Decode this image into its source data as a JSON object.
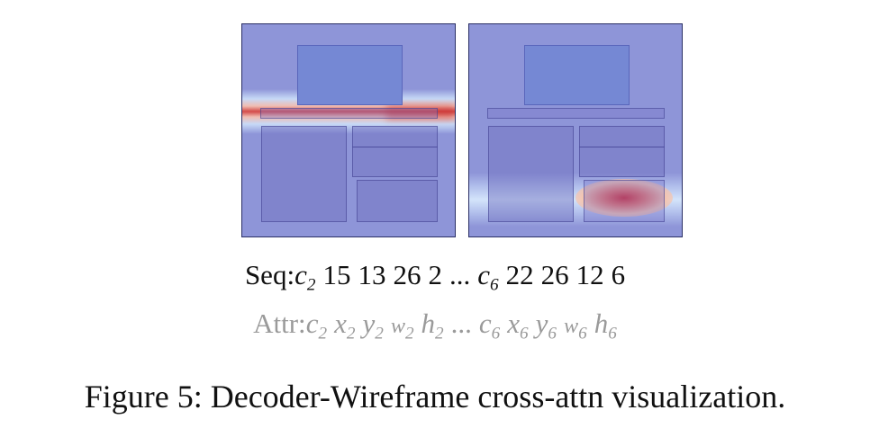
{
  "figure": {
    "seq": {
      "label": "Seq:",
      "tokens": [
        {
          "base": "c",
          "sub": "2",
          "italic": true
        },
        {
          "base": "15"
        },
        {
          "base": "13"
        },
        {
          "base": "26"
        },
        {
          "base": "2"
        },
        {
          "base": "..."
        },
        {
          "base": "c",
          "sub": "6",
          "italic": true
        },
        {
          "base": "22"
        },
        {
          "base": "26"
        },
        {
          "base": "12"
        },
        {
          "base": "6"
        }
      ]
    },
    "attr": {
      "label": "Attr:",
      "tokens": [
        {
          "base": "c",
          "sub": "2",
          "italic": true
        },
        {
          "base": "x",
          "sub": "2",
          "italic": true
        },
        {
          "base": "y",
          "sub": "2",
          "italic": true
        },
        {
          "base": "w",
          "sub": "2",
          "italic": true,
          "small": true
        },
        {
          "base": "h",
          "sub": "2",
          "italic": true
        },
        {
          "base": "..."
        },
        {
          "base": "c",
          "sub": "6",
          "italic": true
        },
        {
          "base": "x",
          "sub": "6",
          "italic": true
        },
        {
          "base": "y",
          "sub": "6",
          "italic": true
        },
        {
          "base": "w",
          "sub": "6",
          "italic": true,
          "small": true
        },
        {
          "base": "h",
          "sub": "6",
          "italic": true
        }
      ]
    },
    "caption": "Figure 5: Decoder-Wireframe cross-attn visualization.",
    "colors": {
      "heat_base": "#8e95d8",
      "heat_hot": "#d33a3a",
      "box_border": "#3c3c8c",
      "frame": "#2a2f66"
    }
  }
}
